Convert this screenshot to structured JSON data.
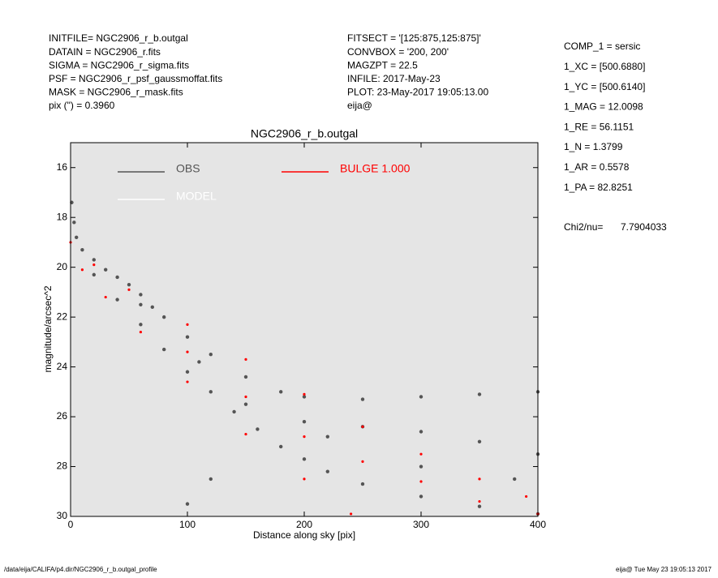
{
  "header": {
    "left": [
      "INITFILE= NGC2906_r_b.outgal",
      "DATAIN  = NGC2906_r.fits",
      "SIGMA  = NGC2906_r_sigma.fits",
      "PSF    = NGC2906_r_psf_gaussmoffat.fits",
      "MASK   = NGC2906_r_mask.fits",
      "pix (\") =  0.3960"
    ],
    "middle": [
      "FITSECT = '[125:875,125:875]'",
      "CONVBOX = '200, 200'",
      "MAGZPT =            22.5",
      "INFILE: 2017-May-23",
      "PLOT: 23-May-2017 19:05:13.00",
      "eija@"
    ],
    "right": [
      "COMP_1  = sersic",
      "1_XC    = [500.6880]",
      "1_YC    = [500.6140]",
      "1_MAG   = 12.0098",
      "1_RE    = 56.1151",
      "1_N     = 1.3799",
      "1_AR    = 0.5578",
      "1_PA    = 82.8251"
    ],
    "chi2": {
      "label": "Chi2/nu=",
      "value": "7.7904033"
    }
  },
  "chart_data": {
    "type": "scatter",
    "title": "NGC2906_r_b.outgal",
    "x_label": "Distance along sky [pix]",
    "y_label": "magnitude/arcsec^2",
    "xlim": [
      0,
      400
    ],
    "xticks": [
      0,
      100,
      200,
      300,
      400
    ],
    "ylim": [
      15,
      30
    ],
    "yticks": [
      16,
      18,
      20,
      22,
      24,
      26,
      28,
      30
    ],
    "y_reversed": true,
    "series": [
      {
        "name": "OBS",
        "color": "#555555",
        "x": [
          1,
          3,
          5,
          10,
          20,
          30,
          40,
          50,
          60,
          70,
          80,
          100,
          120,
          150,
          180,
          200,
          250,
          300,
          350,
          400,
          20,
          40,
          60,
          80,
          100,
          120,
          140,
          160,
          180,
          200,
          220,
          250,
          300,
          350,
          400,
          150,
          200,
          250,
          300,
          350,
          400,
          220,
          300,
          380,
          100,
          120,
          60,
          110
        ],
        "values": [
          17.4,
          18.2,
          18.8,
          19.3,
          19.7,
          20.1,
          20.4,
          20.7,
          21.1,
          21.6,
          22.0,
          22.8,
          23.5,
          24.4,
          25.0,
          25.2,
          25.3,
          25.2,
          25.1,
          25.0,
          20.3,
          21.3,
          22.3,
          23.3,
          24.2,
          25.0,
          25.8,
          26.5,
          27.2,
          27.7,
          28.2,
          28.7,
          29.2,
          29.6,
          29.9,
          25.5,
          26.2,
          26.4,
          26.6,
          27.0,
          27.5,
          26.8,
          28.0,
          28.5,
          29.5,
          28.5,
          21.5,
          23.8
        ]
      },
      {
        "name": "MODEL",
        "color": "#ffffff",
        "x": [],
        "values": []
      },
      {
        "name": "BULGE  1.000",
        "color": "#ff0000",
        "x": [
          0,
          20,
          50,
          100,
          150,
          200,
          250,
          300,
          350,
          390,
          10,
          30,
          60,
          100,
          150,
          200,
          240,
          100,
          150,
          200,
          250,
          300,
          350,
          400
        ],
        "values": [
          19.0,
          19.9,
          20.9,
          22.3,
          23.7,
          25.1,
          26.4,
          27.5,
          28.5,
          29.2,
          20.1,
          21.2,
          22.6,
          24.6,
          26.7,
          28.5,
          29.9,
          23.4,
          25.2,
          26.8,
          27.8,
          28.6,
          29.4,
          29.9
        ]
      }
    ],
    "plot_background": "#e5e5e5"
  },
  "footer": {
    "left": "/data/eija/CALIFA/p4.dir/NGC2906_r_b.outgal_profile",
    "right": "eija@  Tue May 23 19:05:13 2017"
  }
}
